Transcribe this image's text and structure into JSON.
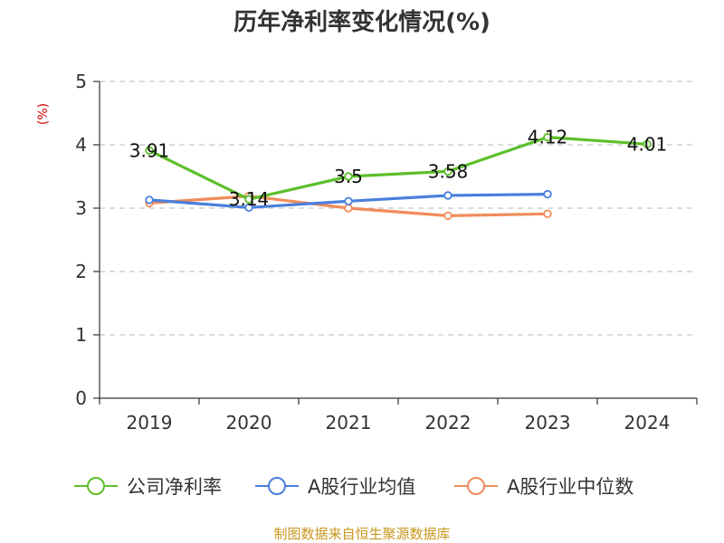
{
  "chart_data": {
    "type": "line",
    "title": "历年净利率变化情况(%)",
    "ylabel": "(%)",
    "xlabel": "",
    "categories": [
      "2019",
      "2020",
      "2021",
      "2022",
      "2023",
      "2024"
    ],
    "ylim": [
      0,
      5
    ],
    "yticks": [
      "0",
      "1",
      "2",
      "3",
      "4",
      "5"
    ],
    "grid": true,
    "legend_position": "bottom",
    "series": [
      {
        "name": "公司净利率",
        "color": "#5cbf2a",
        "values": [
          3.91,
          3.14,
          3.5,
          3.58,
          4.12,
          4.01
        ],
        "labels": [
          "3.91",
          "3.14",
          "3.5",
          "3.58",
          "4.12",
          "4.01"
        ]
      },
      {
        "name": "A股行业均值",
        "color": "#4a7fdc",
        "values": [
          3.13,
          3.01,
          3.11,
          3.2,
          3.22,
          null
        ]
      },
      {
        "name": "A股行业中位数",
        "color": "#f08c5a",
        "values": [
          3.08,
          3.19,
          3.0,
          2.88,
          2.91,
          null
        ]
      }
    ]
  },
  "source_text": "制图数据来自恒生聚源数据库"
}
